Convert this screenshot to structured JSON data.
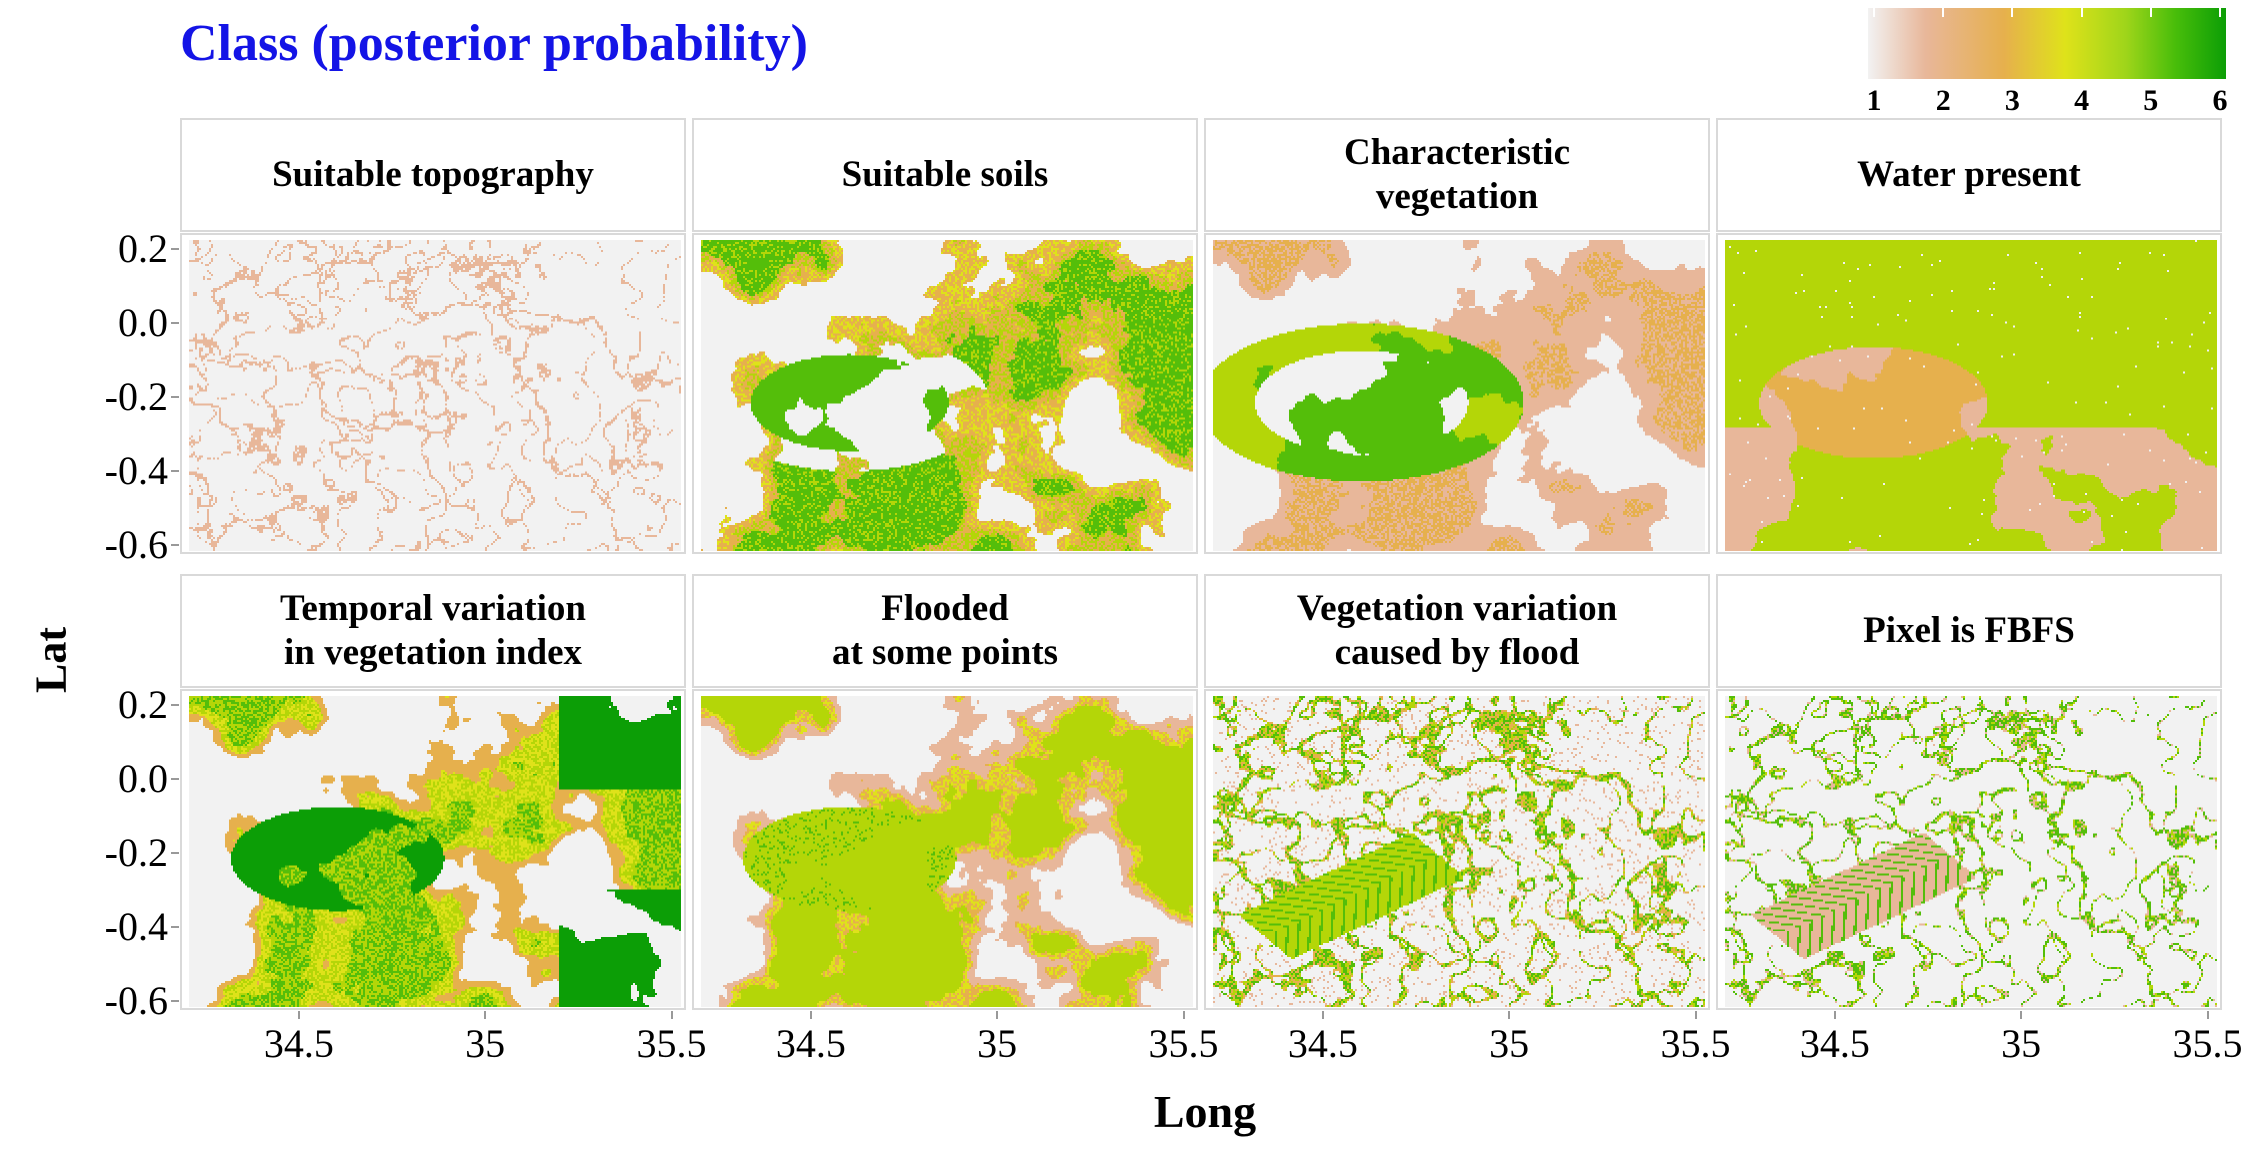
{
  "title": "Class (posterior probability)",
  "legend": {
    "labels": [
      "1",
      "2",
      "3",
      "4",
      "5",
      "6"
    ],
    "colors": [
      "#f2f2f2",
      "#e8b79a",
      "#e6b04d",
      "#dfe21a",
      "#9fd51a",
      "#48bd0a",
      "#0c9e06"
    ]
  },
  "chart_data": {
    "type": "heatmap",
    "title": "Class (posterior probability)",
    "xlabel": "Long",
    "ylabel": "Lat",
    "xlim": [
      34.2,
      35.52
    ],
    "ylim": [
      -0.61,
      0.23
    ],
    "xticks": [
      "34.5",
      "35",
      "35.5"
    ],
    "yticks": [
      "0.2",
      "0.0",
      "-0.2",
      "-0.4",
      "-0.6"
    ],
    "value_range": [
      1,
      6
    ],
    "panels": [
      {
        "label": "Suitable topography",
        "pattern": "sparse-channels"
      },
      {
        "label": "Suitable soils",
        "pattern": "large-patches"
      },
      {
        "label": "Characteristic\nvegetation",
        "pattern": "mixed-patches"
      },
      {
        "label": "Water present",
        "pattern": "uniform-high"
      },
      {
        "label": "Temporal variation\nin vegetation index",
        "pattern": "dark-patches"
      },
      {
        "label": "Flooded\nat some points",
        "pattern": "mid-patches"
      },
      {
        "label": "Vegetation variation\ncaused by flood",
        "pattern": "dense-channels"
      },
      {
        "label": "Pixel is FBFS",
        "pattern": "fbfs-channels"
      }
    ]
  }
}
